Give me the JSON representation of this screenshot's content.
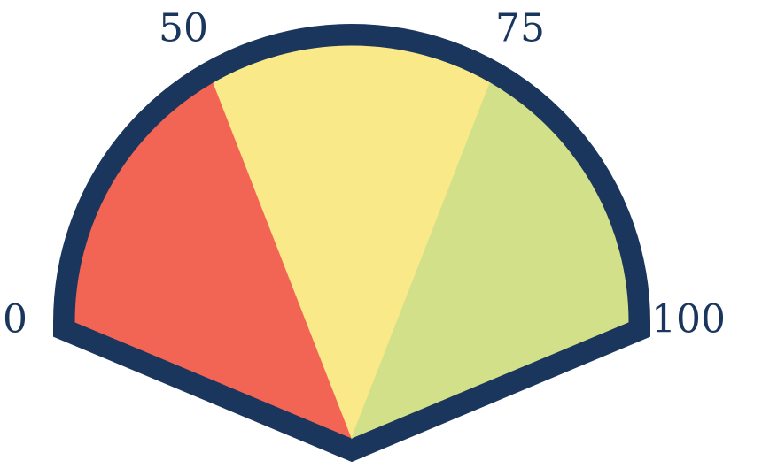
{
  "chart_data": {
    "type": "gauge",
    "ticks": [
      0,
      50,
      75,
      100
    ],
    "band_colors": [
      "#f26555",
      "#f9e988",
      "#d3e08a"
    ],
    "border_color": "#1b365d"
  }
}
